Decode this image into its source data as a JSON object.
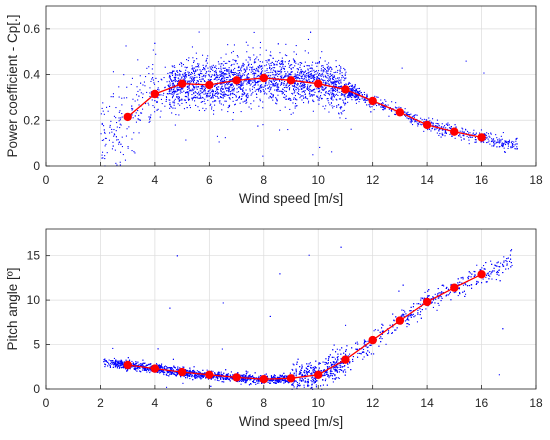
{
  "chart_data": [
    {
      "type": "scatter",
      "xlabel": "Wind speed [m/s]",
      "ylabel": "Power coefficient - Cp[.]",
      "xlim": [
        0,
        18
      ],
      "ylim": [
        0,
        0.7
      ],
      "xticks": [
        "0",
        "2",
        "4",
        "6",
        "8",
        "10",
        "12",
        "14",
        "16",
        "18"
      ],
      "yticks": [
        "0",
        "0.2",
        "0.4",
        "0.6"
      ],
      "xtick_values": [
        0,
        2,
        4,
        6,
        8,
        10,
        12,
        14,
        16,
        18
      ],
      "ytick_values": [
        0,
        0.2,
        0.4,
        0.6
      ],
      "grid": true,
      "colors": {
        "scatter": "#0000ff",
        "binned": "#ff0000"
      },
      "series": [
        {
          "kind": "binned-mean",
          "x": [
            3,
            4,
            5,
            6,
            7,
            8,
            9,
            10,
            11,
            12,
            13,
            14,
            15,
            16
          ],
          "y": [
            0.215,
            0.315,
            0.36,
            0.355,
            0.375,
            0.385,
            0.375,
            0.36,
            0.335,
            0.285,
            0.235,
            0.18,
            0.15,
            0.125
          ]
        }
      ]
    },
    {
      "type": "scatter",
      "xlabel": "Wind speed [m/s]",
      "ylabel": "Pitch angle [º]",
      "xlim": [
        0,
        18
      ],
      "ylim": [
        0,
        18
      ],
      "xticks": [
        "0",
        "2",
        "4",
        "6",
        "8",
        "10",
        "12",
        "14",
        "16",
        "18"
      ],
      "yticks": [
        "0",
        "5",
        "10",
        "15"
      ],
      "xtick_values": [
        0,
        2,
        4,
        6,
        8,
        10,
        12,
        14,
        16,
        18
      ],
      "ytick_values": [
        0,
        5,
        10,
        15
      ],
      "grid": true,
      "colors": {
        "scatter": "#0000ff",
        "binned": "#ff0000"
      },
      "series": [
        {
          "kind": "binned-mean",
          "x": [
            3,
            4,
            5,
            6,
            7,
            8,
            9,
            10,
            11,
            12,
            13,
            14,
            15,
            16
          ],
          "y": [
            2.7,
            2.3,
            1.9,
            1.6,
            1.3,
            1.1,
            1.2,
            1.6,
            3.3,
            5.5,
            7.7,
            9.8,
            11.4,
            12.9
          ]
        }
      ]
    }
  ]
}
